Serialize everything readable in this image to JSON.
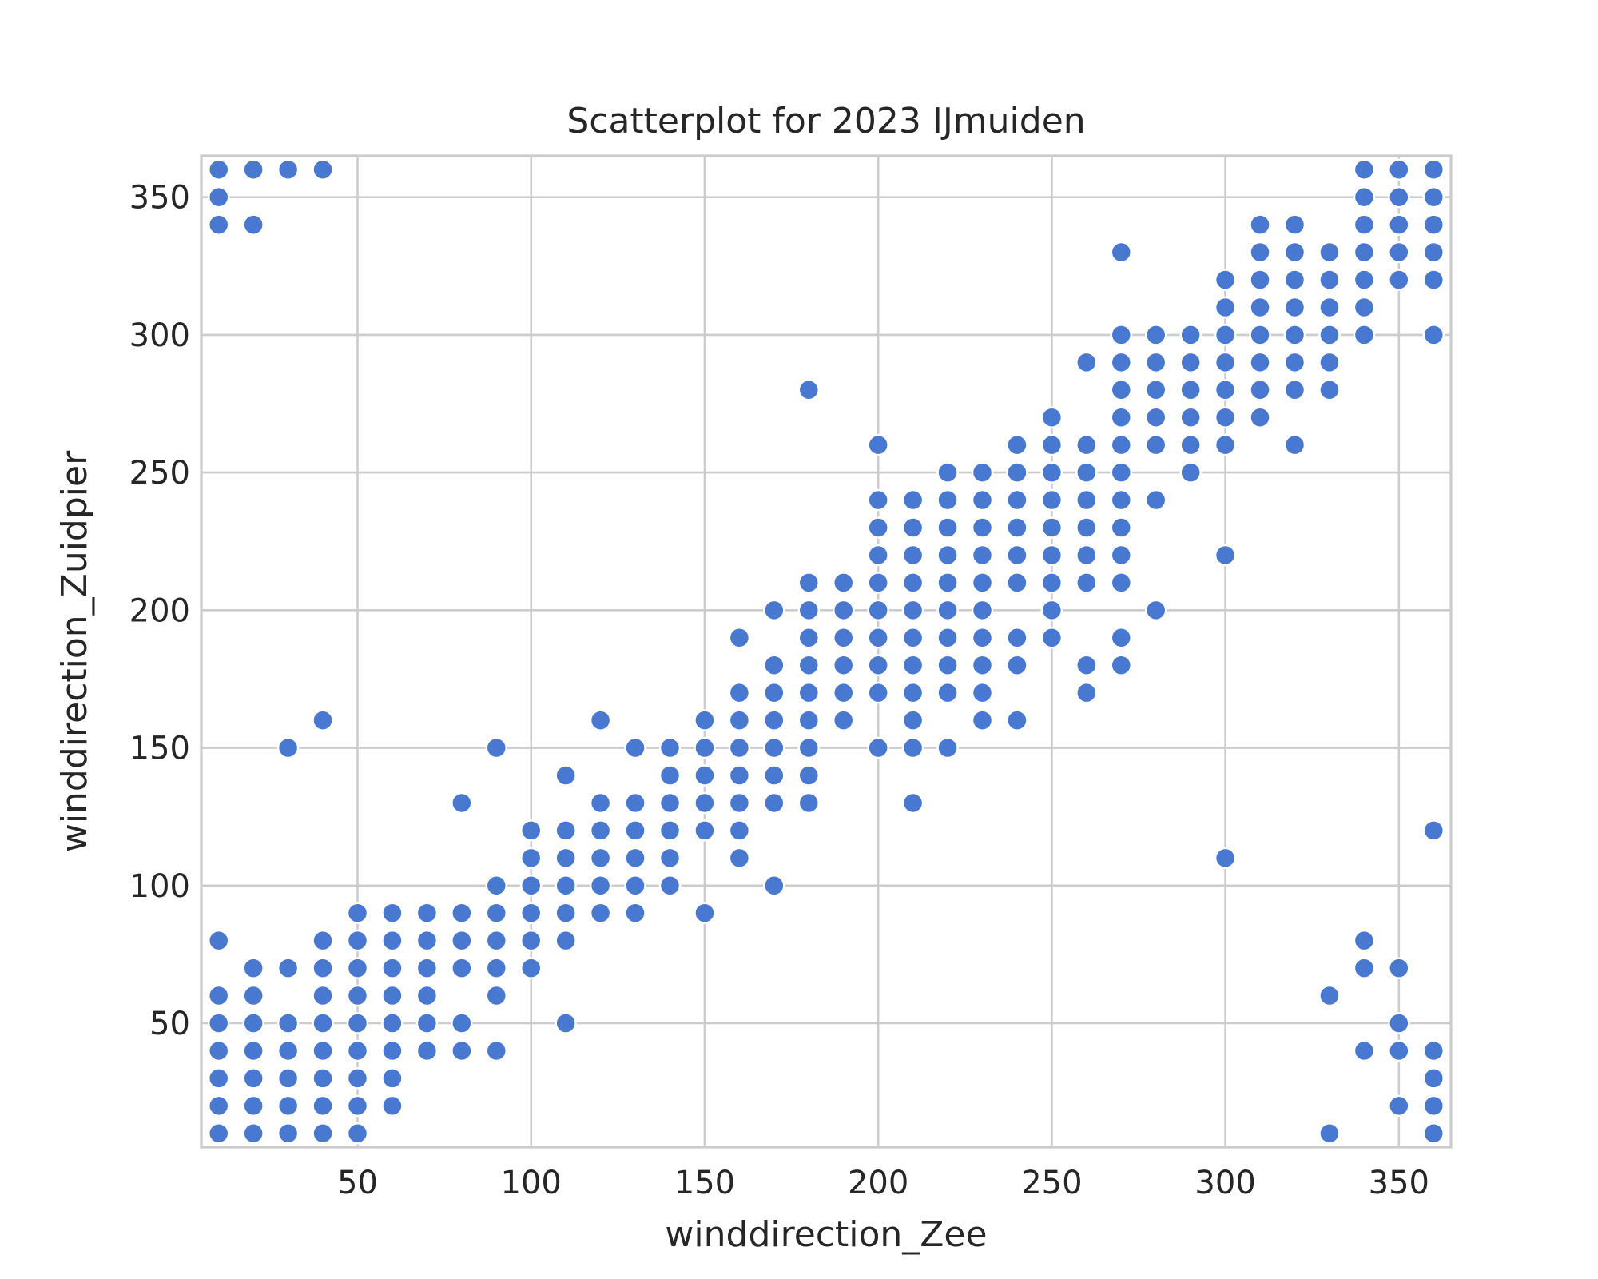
{
  "chart_data": {
    "type": "scatter",
    "title": "Scatterplot for 2023 IJmuiden",
    "xlabel": "winddirection_Zee",
    "ylabel": "winddirection_Zuidpier",
    "xlim": [
      5,
      365
    ],
    "ylim": [
      5,
      365
    ],
    "xticks": [
      50,
      100,
      150,
      200,
      250,
      300,
      350
    ],
    "yticks": [
      50,
      100,
      150,
      200,
      250,
      300,
      350
    ],
    "grid": true,
    "color": "#4878d0",
    "series": [
      {
        "points": [
          [
            10,
            10
          ],
          [
            10,
            20
          ],
          [
            10,
            30
          ],
          [
            10,
            40
          ],
          [
            10,
            50
          ],
          [
            10,
            60
          ],
          [
            10,
            80
          ],
          [
            10,
            340
          ],
          [
            10,
            350
          ],
          [
            10,
            360
          ],
          [
            20,
            10
          ],
          [
            20,
            20
          ],
          [
            20,
            30
          ],
          [
            20,
            40
          ],
          [
            20,
            50
          ],
          [
            20,
            60
          ],
          [
            20,
            70
          ],
          [
            20,
            340
          ],
          [
            20,
            360
          ],
          [
            30,
            10
          ],
          [
            30,
            20
          ],
          [
            30,
            30
          ],
          [
            30,
            40
          ],
          [
            30,
            50
          ],
          [
            30,
            70
          ],
          [
            30,
            150
          ],
          [
            30,
            360
          ],
          [
            40,
            10
          ],
          [
            40,
            20
          ],
          [
            40,
            30
          ],
          [
            40,
            40
          ],
          [
            40,
            50
          ],
          [
            40,
            60
          ],
          [
            40,
            70
          ],
          [
            40,
            80
          ],
          [
            40,
            160
          ],
          [
            40,
            360
          ],
          [
            50,
            10
          ],
          [
            50,
            20
          ],
          [
            50,
            30
          ],
          [
            50,
            40
          ],
          [
            50,
            50
          ],
          [
            50,
            60
          ],
          [
            50,
            70
          ],
          [
            50,
            80
          ],
          [
            50,
            90
          ],
          [
            60,
            20
          ],
          [
            60,
            30
          ],
          [
            60,
            40
          ],
          [
            60,
            50
          ],
          [
            60,
            60
          ],
          [
            60,
            70
          ],
          [
            60,
            80
          ],
          [
            60,
            90
          ],
          [
            70,
            40
          ],
          [
            70,
            50
          ],
          [
            70,
            60
          ],
          [
            70,
            70
          ],
          [
            70,
            80
          ],
          [
            70,
            90
          ],
          [
            80,
            40
          ],
          [
            80,
            50
          ],
          [
            80,
            70
          ],
          [
            80,
            80
          ],
          [
            80,
            90
          ],
          [
            80,
            130
          ],
          [
            90,
            40
          ],
          [
            90,
            60
          ],
          [
            90,
            70
          ],
          [
            90,
            80
          ],
          [
            90,
            90
          ],
          [
            90,
            100
          ],
          [
            90,
            150
          ],
          [
            100,
            70
          ],
          [
            100,
            80
          ],
          [
            100,
            90
          ],
          [
            100,
            100
          ],
          [
            100,
            110
          ],
          [
            100,
            120
          ],
          [
            110,
            50
          ],
          [
            110,
            80
          ],
          [
            110,
            90
          ],
          [
            110,
            100
          ],
          [
            110,
            110
          ],
          [
            110,
            120
          ],
          [
            110,
            140
          ],
          [
            120,
            90
          ],
          [
            120,
            100
          ],
          [
            120,
            110
          ],
          [
            120,
            120
          ],
          [
            120,
            130
          ],
          [
            120,
            160
          ],
          [
            130,
            90
          ],
          [
            130,
            100
          ],
          [
            130,
            110
          ],
          [
            130,
            120
          ],
          [
            130,
            130
          ],
          [
            130,
            150
          ],
          [
            140,
            100
          ],
          [
            140,
            110
          ],
          [
            140,
            120
          ],
          [
            140,
            130
          ],
          [
            140,
            140
          ],
          [
            140,
            150
          ],
          [
            150,
            90
          ],
          [
            150,
            120
          ],
          [
            150,
            130
          ],
          [
            150,
            140
          ],
          [
            150,
            150
          ],
          [
            150,
            160
          ],
          [
            160,
            110
          ],
          [
            160,
            120
          ],
          [
            160,
            130
          ],
          [
            160,
            140
          ],
          [
            160,
            150
          ],
          [
            160,
            160
          ],
          [
            160,
            170
          ],
          [
            160,
            190
          ],
          [
            170,
            100
          ],
          [
            170,
            130
          ],
          [
            170,
            140
          ],
          [
            170,
            150
          ],
          [
            170,
            160
          ],
          [
            170,
            170
          ],
          [
            170,
            180
          ],
          [
            170,
            200
          ],
          [
            180,
            130
          ],
          [
            180,
            140
          ],
          [
            180,
            150
          ],
          [
            180,
            160
          ],
          [
            180,
            170
          ],
          [
            180,
            180
          ],
          [
            180,
            190
          ],
          [
            180,
            200
          ],
          [
            180,
            210
          ],
          [
            180,
            280
          ],
          [
            190,
            160
          ],
          [
            190,
            170
          ],
          [
            190,
            180
          ],
          [
            190,
            190
          ],
          [
            190,
            200
          ],
          [
            190,
            210
          ],
          [
            200,
            150
          ],
          [
            200,
            170
          ],
          [
            200,
            180
          ],
          [
            200,
            190
          ],
          [
            200,
            200
          ],
          [
            200,
            210
          ],
          [
            200,
            220
          ],
          [
            200,
            230
          ],
          [
            200,
            240
          ],
          [
            200,
            260
          ],
          [
            210,
            130
          ],
          [
            210,
            150
          ],
          [
            210,
            160
          ],
          [
            210,
            170
          ],
          [
            210,
            180
          ],
          [
            210,
            190
          ],
          [
            210,
            200
          ],
          [
            210,
            210
          ],
          [
            210,
            220
          ],
          [
            210,
            230
          ],
          [
            210,
            240
          ],
          [
            220,
            150
          ],
          [
            220,
            170
          ],
          [
            220,
            180
          ],
          [
            220,
            190
          ],
          [
            220,
            200
          ],
          [
            220,
            210
          ],
          [
            220,
            220
          ],
          [
            220,
            230
          ],
          [
            220,
            240
          ],
          [
            220,
            250
          ],
          [
            230,
            160
          ],
          [
            230,
            170
          ],
          [
            230,
            180
          ],
          [
            230,
            190
          ],
          [
            230,
            200
          ],
          [
            230,
            210
          ],
          [
            230,
            220
          ],
          [
            230,
            230
          ],
          [
            230,
            240
          ],
          [
            230,
            250
          ],
          [
            240,
            160
          ],
          [
            240,
            180
          ],
          [
            240,
            190
          ],
          [
            240,
            210
          ],
          [
            240,
            220
          ],
          [
            240,
            230
          ],
          [
            240,
            240
          ],
          [
            240,
            250
          ],
          [
            240,
            260
          ],
          [
            250,
            190
          ],
          [
            250,
            200
          ],
          [
            250,
            210
          ],
          [
            250,
            220
          ],
          [
            250,
            230
          ],
          [
            250,
            240
          ],
          [
            250,
            250
          ],
          [
            250,
            260
          ],
          [
            250,
            270
          ],
          [
            260,
            170
          ],
          [
            260,
            180
          ],
          [
            260,
            210
          ],
          [
            260,
            220
          ],
          [
            260,
            230
          ],
          [
            260,
            240
          ],
          [
            260,
            250
          ],
          [
            260,
            260
          ],
          [
            260,
            290
          ],
          [
            270,
            180
          ],
          [
            270,
            190
          ],
          [
            270,
            210
          ],
          [
            270,
            220
          ],
          [
            270,
            230
          ],
          [
            270,
            240
          ],
          [
            270,
            250
          ],
          [
            270,
            260
          ],
          [
            270,
            270
          ],
          [
            270,
            280
          ],
          [
            270,
            290
          ],
          [
            270,
            300
          ],
          [
            270,
            330
          ],
          [
            280,
            200
          ],
          [
            280,
            240
          ],
          [
            280,
            260
          ],
          [
            280,
            270
          ],
          [
            280,
            280
          ],
          [
            280,
            290
          ],
          [
            280,
            300
          ],
          [
            290,
            250
          ],
          [
            290,
            260
          ],
          [
            290,
            270
          ],
          [
            290,
            280
          ],
          [
            290,
            290
          ],
          [
            290,
            300
          ],
          [
            300,
            110
          ],
          [
            300,
            220
          ],
          [
            300,
            260
          ],
          [
            300,
            270
          ],
          [
            300,
            280
          ],
          [
            300,
            290
          ],
          [
            300,
            300
          ],
          [
            300,
            310
          ],
          [
            300,
            320
          ],
          [
            310,
            270
          ],
          [
            310,
            280
          ],
          [
            310,
            290
          ],
          [
            310,
            300
          ],
          [
            310,
            310
          ],
          [
            310,
            320
          ],
          [
            310,
            330
          ],
          [
            310,
            340
          ],
          [
            320,
            260
          ],
          [
            320,
            280
          ],
          [
            320,
            290
          ],
          [
            320,
            300
          ],
          [
            320,
            310
          ],
          [
            320,
            320
          ],
          [
            320,
            330
          ],
          [
            320,
            340
          ],
          [
            330,
            10
          ],
          [
            330,
            60
          ],
          [
            330,
            280
          ],
          [
            330,
            290
          ],
          [
            330,
            300
          ],
          [
            330,
            310
          ],
          [
            330,
            320
          ],
          [
            330,
            330
          ],
          [
            340,
            40
          ],
          [
            340,
            70
          ],
          [
            340,
            80
          ],
          [
            340,
            300
          ],
          [
            340,
            310
          ],
          [
            340,
            320
          ],
          [
            340,
            330
          ],
          [
            340,
            340
          ],
          [
            340,
            350
          ],
          [
            340,
            360
          ],
          [
            350,
            20
          ],
          [
            350,
            40
          ],
          [
            350,
            50
          ],
          [
            350,
            70
          ],
          [
            350,
            320
          ],
          [
            350,
            330
          ],
          [
            350,
            340
          ],
          [
            350,
            350
          ],
          [
            350,
            360
          ],
          [
            360,
            10
          ],
          [
            360,
            20
          ],
          [
            360,
            30
          ],
          [
            360,
            40
          ],
          [
            360,
            120
          ],
          [
            360,
            300
          ],
          [
            360,
            320
          ],
          [
            360,
            330
          ],
          [
            360,
            340
          ],
          [
            360,
            350
          ],
          [
            360,
            360
          ]
        ]
      }
    ]
  }
}
